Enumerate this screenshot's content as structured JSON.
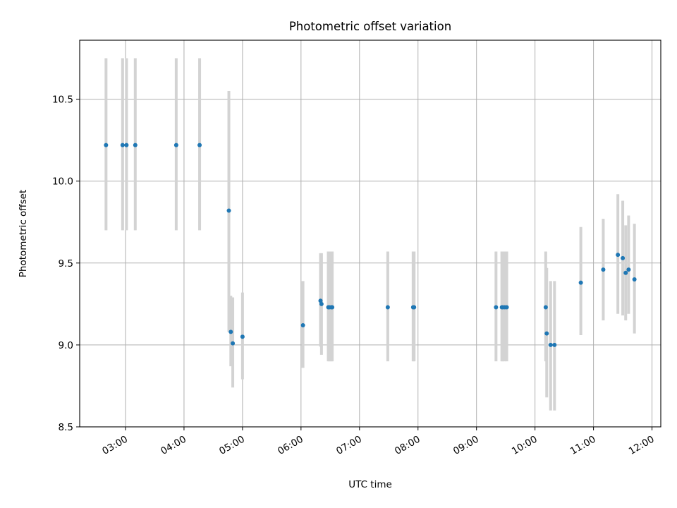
{
  "chart_data": {
    "type": "scatter",
    "title": "Photometric offset variation",
    "xlabel": "UTC time",
    "ylabel": "Photometric offset",
    "ylim": [
      8.5,
      10.86
    ],
    "xlim": [
      "02:13",
      "12:09"
    ],
    "yticks": [
      8.5,
      9.0,
      9.5,
      10.0,
      10.5
    ],
    "ytick_labels": [
      "8.5",
      "9.0",
      "9.5",
      "10.0",
      "10.5"
    ],
    "xticks": [
      "03:00",
      "04:00",
      "05:00",
      "06:00",
      "07:00",
      "08:00",
      "09:00",
      "10:00",
      "11:00",
      "12:00"
    ],
    "grid": true,
    "marker_color": "#1f77b4",
    "errorbar_color": "#d3d3d3",
    "series": [
      {
        "points": [
          {
            "t": "02:40",
            "y": 10.22,
            "lo": 9.7,
            "hi": 10.75
          },
          {
            "t": "02:57",
            "y": 10.22,
            "lo": 9.7,
            "hi": 10.75
          },
          {
            "t": "03:01",
            "y": 10.22,
            "lo": 9.7,
            "hi": 10.75
          },
          {
            "t": "03:10",
            "y": 10.22,
            "lo": 9.7,
            "hi": 10.75
          },
          {
            "t": "03:52",
            "y": 10.22,
            "lo": 9.7,
            "hi": 10.75
          },
          {
            "t": "04:16",
            "y": 10.22,
            "lo": 9.7,
            "hi": 10.75
          },
          {
            "t": "04:46",
            "y": 9.82,
            "lo": 9.08,
            "hi": 10.55
          },
          {
            "t": "04:48",
            "y": 9.08,
            "lo": 8.87,
            "hi": 9.3
          },
          {
            "t": "04:50",
            "y": 9.01,
            "lo": 8.74,
            "hi": 9.29
          },
          {
            "t": "05:00",
            "y": 9.05,
            "lo": 8.79,
            "hi": 9.32
          },
          {
            "t": "06:02",
            "y": 9.12,
            "lo": 8.86,
            "hi": 9.39
          },
          {
            "t": "06:20",
            "y": 9.27,
            "lo": 8.99,
            "hi": 9.56
          },
          {
            "t": "06:21",
            "y": 9.25,
            "lo": 8.94,
            "hi": 9.56
          },
          {
            "t": "06:28",
            "y": 9.23,
            "lo": 8.9,
            "hi": 9.57
          },
          {
            "t": "06:29",
            "y": 9.23,
            "lo": 8.9,
            "hi": 9.57
          },
          {
            "t": "06:31",
            "y": 9.23,
            "lo": 8.9,
            "hi": 9.57
          },
          {
            "t": "06:32",
            "y": 9.23,
            "lo": 8.9,
            "hi": 9.57
          },
          {
            "t": "07:29",
            "y": 9.23,
            "lo": 8.9,
            "hi": 9.57
          },
          {
            "t": "07:55",
            "y": 9.23,
            "lo": 8.9,
            "hi": 9.57
          },
          {
            "t": "07:56",
            "y": 9.23,
            "lo": 8.9,
            "hi": 9.57
          },
          {
            "t": "09:20",
            "y": 9.23,
            "lo": 8.9,
            "hi": 9.57
          },
          {
            "t": "09:26",
            "y": 9.23,
            "lo": 8.9,
            "hi": 9.57
          },
          {
            "t": "09:27",
            "y": 9.23,
            "lo": 8.9,
            "hi": 9.57
          },
          {
            "t": "09:29",
            "y": 9.23,
            "lo": 8.9,
            "hi": 9.57
          },
          {
            "t": "09:31",
            "y": 9.23,
            "lo": 8.9,
            "hi": 9.57
          },
          {
            "t": "10:11",
            "y": 9.23,
            "lo": 8.9,
            "hi": 9.57
          },
          {
            "t": "10:12",
            "y": 9.07,
            "lo": 8.68,
            "hi": 9.47
          },
          {
            "t": "10:16",
            "y": 9.0,
            "lo": 8.6,
            "hi": 9.39
          },
          {
            "t": "10:20",
            "y": 9.0,
            "lo": 8.6,
            "hi": 9.39
          },
          {
            "t": "10:47",
            "y": 9.38,
            "lo": 9.06,
            "hi": 9.72
          },
          {
            "t": "11:10",
            "y": 9.46,
            "lo": 9.15,
            "hi": 9.77
          },
          {
            "t": "11:25",
            "y": 9.55,
            "lo": 9.19,
            "hi": 9.92
          },
          {
            "t": "11:30",
            "y": 9.53,
            "lo": 9.18,
            "hi": 9.88
          },
          {
            "t": "11:33",
            "y": 9.44,
            "lo": 9.15,
            "hi": 9.73
          },
          {
            "t": "11:36",
            "y": 9.46,
            "lo": 9.19,
            "hi": 9.79
          },
          {
            "t": "11:42",
            "y": 9.4,
            "lo": 9.07,
            "hi": 9.74
          }
        ]
      }
    ]
  }
}
